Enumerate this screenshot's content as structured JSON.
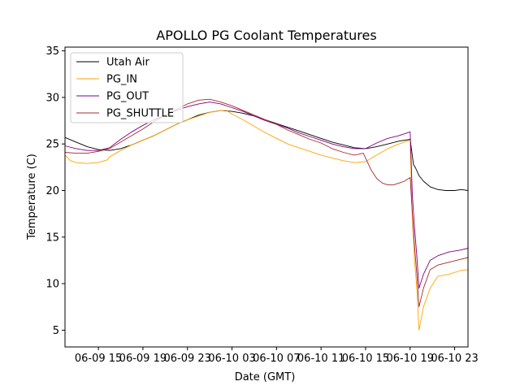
{
  "chart_data": {
    "type": "line",
    "title": "APOLLO PG Coolant Temperatures",
    "xlabel": "Date (GMT)",
    "ylabel": "Temperature (C)",
    "x_unit": "hours since 06-09 00:00 GMT",
    "xlim": [
      11.0,
      47.2
    ],
    "ylim": [
      3.2,
      35.4
    ],
    "x_ticks": [
      {
        "x": 14,
        "label": "06-09 15"
      },
      {
        "x": 18,
        "label": "06-09 19"
      },
      {
        "x": 22,
        "label": "06-09 23"
      },
      {
        "x": 26,
        "label": "06-10 03"
      },
      {
        "x": 30,
        "label": "06-10 07"
      },
      {
        "x": 34,
        "label": "06-10 11"
      },
      {
        "x": 38,
        "label": "06-10 15"
      },
      {
        "x": 42,
        "label": "06-10 19"
      },
      {
        "x": 46,
        "label": "06-10 23"
      }
    ],
    "y_ticks": [
      5,
      10,
      15,
      20,
      25,
      30,
      35
    ],
    "legend_position": "top-left",
    "series": [
      {
        "name": "Utah Air",
        "color": "#000000",
        "x": [
          11.0,
          12.0,
          13.0,
          14.0,
          15.0,
          16.0,
          17.0,
          18.0,
          19.0,
          20.0,
          21.0,
          22.0,
          23.0,
          24.0,
          25.0,
          26.0,
          27.0,
          28.0,
          29.0,
          30.0,
          31.0,
          32.0,
          33.0,
          34.0,
          35.0,
          36.0,
          37.0,
          38.0,
          39.0,
          40.0,
          41.0,
          42.0,
          42.3,
          42.5,
          42.8,
          43.2,
          43.8,
          44.5,
          45.2,
          46.0,
          46.6,
          47.2
        ],
        "y": [
          25.7,
          25.2,
          24.7,
          24.4,
          24.3,
          24.5,
          24.9,
          25.4,
          25.9,
          26.5,
          27.1,
          27.6,
          28.1,
          28.4,
          28.6,
          28.5,
          28.3,
          28.0,
          27.6,
          27.2,
          26.8,
          26.4,
          26.0,
          25.6,
          25.2,
          24.9,
          24.6,
          24.5,
          24.7,
          25.0,
          25.3,
          25.5,
          22.8,
          22.4,
          21.6,
          21.0,
          20.4,
          20.1,
          20.0,
          20.0,
          20.1,
          20.0
        ]
      },
      {
        "name": "PG_IN",
        "color": "#ffa500",
        "x": [
          11.0,
          11.5,
          12.0,
          13.0,
          14.0,
          14.8,
          15.0,
          16.0,
          17.0,
          18.0,
          19.0,
          20.0,
          21.0,
          22.0,
          23.0,
          24.0,
          25.0,
          25.5,
          26.0,
          27.0,
          28.0,
          29.0,
          30.0,
          31.0,
          32.0,
          33.0,
          34.0,
          35.0,
          36.0,
          37.0,
          38.0,
          39.0,
          40.0,
          41.0,
          42.0,
          42.2,
          42.4,
          42.6,
          42.8,
          43.2,
          43.8,
          44.5,
          45.5,
          46.5,
          47.2
        ],
        "y": [
          23.8,
          23.2,
          23.0,
          22.9,
          23.0,
          23.3,
          23.6,
          24.3,
          24.9,
          25.4,
          25.9,
          26.5,
          27.1,
          27.6,
          28.0,
          28.4,
          28.6,
          28.6,
          28.2,
          27.6,
          26.9,
          26.2,
          25.6,
          25.0,
          24.6,
          24.2,
          23.8,
          23.5,
          23.2,
          23.0,
          23.1,
          23.8,
          24.5,
          25.0,
          25.4,
          17.0,
          12.5,
          9.5,
          5.0,
          7.5,
          9.5,
          10.8,
          11.0,
          11.4,
          11.5
        ]
      },
      {
        "name": "PG_OUT",
        "color": "#800080",
        "x": [
          11.0,
          12.0,
          13.0,
          14.0,
          15.0,
          16.0,
          17.0,
          18.0,
          19.0,
          20.0,
          21.0,
          22.0,
          23.0,
          24.0,
          25.0,
          26.0,
          27.0,
          28.0,
          29.0,
          30.0,
          31.0,
          32.0,
          33.0,
          34.0,
          35.0,
          36.0,
          37.0,
          38.0,
          39.0,
          40.0,
          41.0,
          42.0,
          42.2,
          42.4,
          42.6,
          42.8,
          43.2,
          43.8,
          44.5,
          45.5,
          46.5,
          47.2
        ],
        "y": [
          24.8,
          24.5,
          24.3,
          24.3,
          24.6,
          25.5,
          26.3,
          27.0,
          27.6,
          28.1,
          28.6,
          29.0,
          29.3,
          29.5,
          29.3,
          28.9,
          28.5,
          28.0,
          27.5,
          27.1,
          26.7,
          26.2,
          25.8,
          25.4,
          25.0,
          24.7,
          24.5,
          24.5,
          25.1,
          25.6,
          25.9,
          26.3,
          19.5,
          16.0,
          13.0,
          9.5,
          11.0,
          12.5,
          13.0,
          13.4,
          13.6,
          13.8
        ]
      },
      {
        "name": "PG_SHUTTLE",
        "color": "#a52a2a",
        "x": [
          11.0,
          12.0,
          13.0,
          14.0,
          15.0,
          16.0,
          17.0,
          18.0,
          19.0,
          20.0,
          21.0,
          22.0,
          23.0,
          24.0,
          25.0,
          26.0,
          27.0,
          28.0,
          29.0,
          30.0,
          31.0,
          32.0,
          33.0,
          34.0,
          35.0,
          36.0,
          37.0,
          37.8,
          38.0,
          38.5,
          39.0,
          39.5,
          40.0,
          40.5,
          41.0,
          41.5,
          42.0,
          42.2,
          42.4,
          42.6,
          42.8,
          43.2,
          43.8,
          44.5,
          45.5,
          46.5,
          47.2
        ],
        "y": [
          24.1,
          24.0,
          24.0,
          24.2,
          24.5,
          25.2,
          25.9,
          26.6,
          27.4,
          28.1,
          28.7,
          29.3,
          29.7,
          29.8,
          29.5,
          29.1,
          28.6,
          28.1,
          27.6,
          27.1,
          26.5,
          26.0,
          25.5,
          25.1,
          24.5,
          24.1,
          23.8,
          24.0,
          23.5,
          22.2,
          21.3,
          20.8,
          20.6,
          20.6,
          20.8,
          21.0,
          21.4,
          17.5,
          14.0,
          11.0,
          7.5,
          9.5,
          11.5,
          12.0,
          12.3,
          12.6,
          12.8
        ]
      }
    ]
  }
}
